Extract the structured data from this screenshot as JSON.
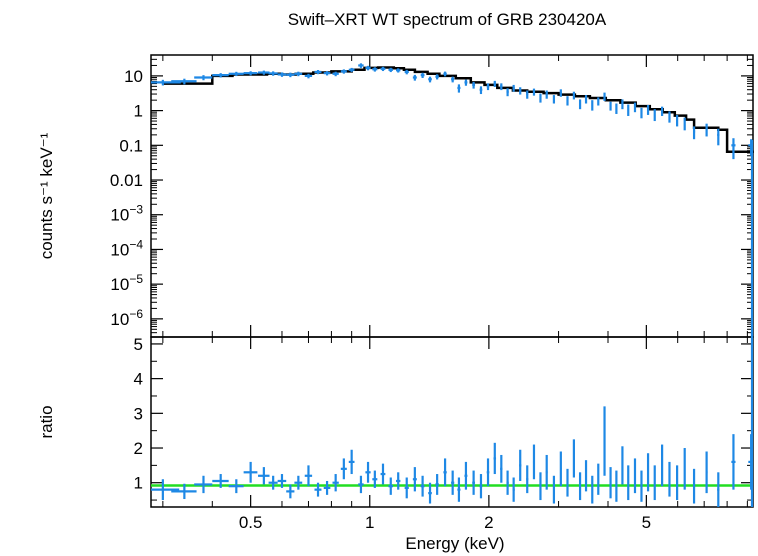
{
  "chart_data": {
    "type": "scatter",
    "title": "Swift–XRT WT spectrum of GRB 230420A",
    "colors": {
      "data": "#1e88e5",
      "model": "#000000",
      "ratio_line": "#22dd22",
      "frame": "#000000"
    },
    "panels": [
      {
        "id": "spectrum",
        "ylabel": "counts s⁻¹ keV⁻¹",
        "yscale": "log",
        "ylim": [
          3e-07,
          40
        ],
        "yticks": [
          {
            "value": 10,
            "label": "10",
            "sup": ""
          },
          {
            "value": 1,
            "label": "1",
            "sup": ""
          },
          {
            "value": 0.1,
            "label": "0.1",
            "sup": ""
          },
          {
            "value": 0.01,
            "label": "0.01",
            "sup": ""
          },
          {
            "value": 0.001,
            "label": "10",
            "sup": "−3"
          },
          {
            "value": 0.0001,
            "label": "10",
            "sup": "−4"
          },
          {
            "value": 1e-05,
            "label": "10",
            "sup": "−5"
          },
          {
            "value": 1e-06,
            "label": "10",
            "sup": "−6"
          }
        ],
        "data": [
          [
            0.3,
            0.033,
            6.5,
            1.2
          ],
          [
            0.34,
            0.025,
            7.0,
            1.3
          ],
          [
            0.38,
            0.02,
            9.0,
            1.5
          ],
          [
            0.42,
            0.02,
            10.5,
            1.5
          ],
          [
            0.46,
            0.02,
            11.5,
            1.6
          ],
          [
            0.5,
            0.02,
            12.0,
            1.6
          ],
          [
            0.54,
            0.018,
            12.5,
            1.7
          ],
          [
            0.57,
            0.015,
            11.8,
            1.7
          ],
          [
            0.6,
            0.015,
            11.0,
            1.6
          ],
          [
            0.63,
            0.015,
            10.8,
            1.6
          ],
          [
            0.66,
            0.015,
            11.5,
            1.7
          ],
          [
            0.7,
            0.015,
            10.0,
            1.5
          ],
          [
            0.74,
            0.015,
            13.0,
            1.8
          ],
          [
            0.78,
            0.015,
            12.0,
            1.7
          ],
          [
            0.82,
            0.015,
            11.5,
            1.7
          ],
          [
            0.86,
            0.015,
            13.5,
            1.9
          ],
          [
            0.9,
            0.015,
            15.0,
            2.0
          ],
          [
            0.95,
            0.015,
            20.0,
            3.0
          ],
          [
            0.99,
            0.015,
            17.0,
            2.5
          ],
          [
            1.03,
            0.015,
            15.5,
            2.2
          ],
          [
            1.08,
            0.015,
            16.0,
            2.2
          ],
          [
            1.13,
            0.015,
            15.0,
            2.1
          ],
          [
            1.18,
            0.015,
            14.5,
            2.0
          ],
          [
            1.24,
            0.015,
            13.0,
            1.9
          ],
          [
            1.3,
            0.015,
            9.0,
            1.7
          ],
          [
            1.36,
            0.015,
            10.5,
            1.8
          ],
          [
            1.42,
            0.015,
            8.0,
            1.5
          ],
          [
            1.48,
            0.015,
            9.5,
            1.6
          ],
          [
            1.55,
            0.015,
            11.5,
            1.8
          ],
          [
            1.62,
            0.015,
            8.0,
            1.5
          ],
          [
            1.68,
            0.015,
            4.5,
            1.2
          ],
          [
            1.75,
            0.015,
            6.5,
            1.3
          ],
          [
            1.83,
            0.015,
            5.5,
            1.2
          ],
          [
            1.91,
            0.015,
            4.0,
            1.0
          ],
          [
            1.99,
            0.015,
            5.0,
            1.1
          ],
          [
            2.07,
            0.015,
            6.0,
            1.2
          ],
          [
            2.15,
            0.015,
            5.0,
            1.1
          ],
          [
            2.23,
            0.015,
            3.5,
            0.9
          ],
          [
            2.31,
            0.015,
            4.5,
            1.0
          ],
          [
            2.4,
            0.015,
            3.8,
            0.9
          ],
          [
            2.5,
            0.015,
            3.0,
            0.8
          ],
          [
            2.6,
            0.015,
            3.5,
            0.8
          ],
          [
            2.7,
            0.015,
            2.4,
            0.7
          ],
          [
            2.8,
            0.015,
            3.0,
            0.8
          ],
          [
            2.92,
            0.015,
            2.2,
            0.6
          ],
          [
            3.04,
            0.015,
            3.3,
            0.8
          ],
          [
            3.16,
            0.015,
            2.0,
            0.6
          ],
          [
            3.28,
            0.015,
            2.8,
            0.7
          ],
          [
            3.4,
            0.015,
            1.6,
            0.5
          ],
          [
            3.52,
            0.015,
            2.2,
            0.6
          ],
          [
            3.65,
            0.015,
            1.5,
            0.5
          ],
          [
            3.78,
            0.015,
            1.9,
            0.5
          ],
          [
            3.92,
            0.015,
            2.6,
            0.7
          ],
          [
            4.06,
            0.015,
            1.4,
            0.4
          ],
          [
            4.2,
            0.015,
            1.2,
            0.4
          ],
          [
            4.35,
            0.015,
            1.6,
            0.5
          ],
          [
            4.5,
            0.015,
            1.1,
            0.4
          ],
          [
            4.68,
            0.015,
            1.3,
            0.4
          ],
          [
            4.86,
            0.015,
            0.9,
            0.3
          ],
          [
            5.05,
            0.015,
            1.1,
            0.35
          ],
          [
            5.25,
            0.015,
            0.8,
            0.3
          ],
          [
            5.48,
            0.015,
            1.0,
            0.3
          ],
          [
            5.72,
            0.015,
            0.7,
            0.25
          ],
          [
            5.98,
            0.015,
            0.55,
            0.2
          ],
          [
            6.25,
            0.015,
            0.45,
            0.18
          ],
          [
            6.6,
            0.04,
            0.25,
            0.1
          ],
          [
            7.1,
            0.04,
            0.3,
            0.12
          ],
          [
            7.6,
            0.05,
            0.2,
            0.1
          ],
          [
            8.3,
            0.1,
            0.1,
            0.06
          ],
          [
            9.2,
            0.15,
            0.1,
            0.05
          ]
        ],
        "model_steps": [
          [
            0.3,
            6.0
          ],
          [
            0.4,
            10.0
          ],
          [
            0.45,
            11.0
          ],
          [
            0.55,
            11.5
          ],
          [
            0.6,
            11.0
          ],
          [
            0.65,
            11.5
          ],
          [
            0.72,
            12.5
          ],
          [
            0.8,
            13.5
          ],
          [
            0.9,
            15.0
          ],
          [
            0.97,
            17.0
          ],
          [
            1.05,
            17.5
          ],
          [
            1.15,
            16.5
          ],
          [
            1.22,
            15.0
          ],
          [
            1.3,
            13.0
          ],
          [
            1.4,
            11.5
          ],
          [
            1.5,
            10.0
          ],
          [
            1.65,
            8.5
          ],
          [
            1.8,
            6.5
          ],
          [
            1.95,
            5.5
          ],
          [
            2.1,
            4.5
          ],
          [
            2.3,
            3.8
          ],
          [
            2.5,
            3.5
          ],
          [
            2.75,
            3.2
          ],
          [
            3.0,
            2.9
          ],
          [
            3.3,
            2.6
          ],
          [
            3.6,
            2.3
          ],
          [
            3.95,
            2.0
          ],
          [
            4.3,
            1.7
          ],
          [
            4.7,
            1.35
          ],
          [
            5.1,
            1.1
          ],
          [
            5.5,
            0.9
          ],
          [
            5.9,
            0.72
          ],
          [
            6.3,
            0.55
          ],
          [
            6.6,
            0.32
          ],
          [
            7.6,
            0.28
          ],
          [
            8.0,
            0.065
          ],
          [
            9.35,
            0.065
          ]
        ]
      },
      {
        "id": "ratio",
        "ylabel": "ratio",
        "yscale": "linear",
        "ylim": [
          0.3,
          5.2
        ],
        "yticks": [
          {
            "value": 1,
            "label": "1",
            "sup": ""
          },
          {
            "value": 2,
            "label": "2",
            "sup": ""
          },
          {
            "value": 3,
            "label": "3",
            "sup": ""
          },
          {
            "value": 4,
            "label": "4",
            "sup": ""
          },
          {
            "value": 5,
            "label": "5",
            "sup": ""
          }
        ],
        "reference_line": 0.92,
        "data": [
          [
            0.3,
            0.03,
            0.8,
            0.3
          ],
          [
            0.34,
            0.025,
            0.75,
            0.22
          ],
          [
            0.38,
            0.02,
            0.95,
            0.25
          ],
          [
            0.42,
            0.02,
            1.05,
            0.2
          ],
          [
            0.46,
            0.02,
            0.9,
            0.2
          ],
          [
            0.5,
            0.02,
            1.3,
            0.3
          ],
          [
            0.54,
            0.018,
            1.2,
            0.25
          ],
          [
            0.57,
            0.015,
            1.0,
            0.2
          ],
          [
            0.6,
            0.015,
            1.05,
            0.2
          ],
          [
            0.63,
            0.015,
            0.75,
            0.2
          ],
          [
            0.66,
            0.015,
            1.0,
            0.2
          ],
          [
            0.7,
            0.015,
            1.2,
            0.3
          ],
          [
            0.74,
            0.015,
            0.8,
            0.2
          ],
          [
            0.78,
            0.015,
            0.85,
            0.2
          ],
          [
            0.82,
            0.015,
            1.0,
            0.25
          ],
          [
            0.86,
            0.015,
            1.4,
            0.3
          ],
          [
            0.9,
            0.015,
            1.6,
            0.35
          ],
          [
            0.95,
            0.015,
            0.95,
            0.25
          ],
          [
            0.99,
            0.015,
            1.3,
            0.3
          ],
          [
            1.03,
            0.015,
            1.1,
            0.25
          ],
          [
            1.08,
            0.015,
            1.25,
            0.3
          ],
          [
            1.13,
            0.015,
            0.9,
            0.25
          ],
          [
            1.18,
            0.015,
            1.05,
            0.25
          ],
          [
            1.24,
            0.015,
            0.85,
            0.3
          ],
          [
            1.3,
            0.015,
            1.1,
            0.35
          ],
          [
            1.36,
            0.015,
            0.9,
            0.3
          ],
          [
            1.42,
            0.015,
            0.7,
            0.3
          ],
          [
            1.48,
            0.015,
            0.95,
            0.3
          ],
          [
            1.55,
            0.015,
            1.3,
            0.4
          ],
          [
            1.62,
            0.015,
            1.0,
            0.35
          ],
          [
            1.68,
            0.015,
            0.8,
            0.35
          ],
          [
            1.75,
            0.015,
            1.2,
            0.4
          ],
          [
            1.83,
            0.015,
            1.0,
            0.35
          ],
          [
            1.91,
            0.015,
            0.9,
            0.35
          ],
          [
            1.99,
            0.015,
            1.3,
            0.4
          ],
          [
            2.07,
            0.015,
            1.7,
            0.45
          ],
          [
            2.15,
            0.015,
            1.4,
            0.4
          ],
          [
            2.23,
            0.015,
            1.0,
            0.35
          ],
          [
            2.31,
            0.015,
            0.8,
            0.35
          ],
          [
            2.4,
            0.015,
            1.5,
            0.45
          ],
          [
            2.5,
            0.015,
            1.1,
            0.4
          ],
          [
            2.6,
            0.015,
            1.6,
            0.5
          ],
          [
            2.7,
            0.015,
            0.9,
            0.4
          ],
          [
            2.8,
            0.015,
            1.3,
            0.5
          ],
          [
            2.92,
            0.015,
            0.8,
            0.4
          ],
          [
            3.04,
            0.015,
            1.4,
            0.5
          ],
          [
            3.16,
            0.015,
            1.0,
            0.4
          ],
          [
            3.28,
            0.015,
            1.7,
            0.55
          ],
          [
            3.4,
            0.015,
            0.9,
            0.4
          ],
          [
            3.52,
            0.015,
            1.2,
            0.45
          ],
          [
            3.65,
            0.015,
            0.8,
            0.4
          ],
          [
            3.78,
            0.015,
            1.1,
            0.45
          ],
          [
            3.92,
            0.015,
            2.2,
            1.0
          ],
          [
            4.06,
            0.015,
            1.0,
            0.45
          ],
          [
            4.2,
            0.015,
            0.9,
            0.45
          ],
          [
            4.35,
            0.015,
            1.5,
            0.55
          ],
          [
            4.5,
            0.015,
            1.0,
            0.5
          ],
          [
            4.68,
            0.015,
            1.2,
            0.5
          ],
          [
            4.86,
            0.015,
            0.9,
            0.45
          ],
          [
            5.05,
            0.015,
            1.3,
            0.55
          ],
          [
            5.25,
            0.015,
            1.0,
            0.5
          ],
          [
            5.48,
            0.015,
            1.5,
            0.6
          ],
          [
            5.72,
            0.015,
            1.1,
            0.5
          ],
          [
            5.98,
            0.015,
            1.0,
            0.5
          ],
          [
            6.25,
            0.015,
            1.4,
            0.6
          ],
          [
            6.6,
            0.04,
            0.9,
            0.5
          ],
          [
            7.1,
            0.04,
            1.3,
            0.6
          ],
          [
            7.6,
            0.05,
            0.8,
            0.5
          ],
          [
            8.3,
            0.1,
            1.6,
            0.8
          ],
          [
            9.2,
            0.15,
            1.6,
            0.8
          ]
        ]
      }
    ],
    "x": {
      "label": "Energy (keV)",
      "scale": "log",
      "lim": [
        0.28,
        9.3
      ],
      "ticks": [
        {
          "value": 0.5,
          "label": "0.5"
        },
        {
          "value": 1,
          "label": "1"
        },
        {
          "value": 2,
          "label": "2"
        },
        {
          "value": 5,
          "label": "5"
        }
      ],
      "minor_ticks": [
        0.3,
        0.4,
        0.6,
        0.7,
        0.8,
        0.9,
        3,
        4,
        6,
        7,
        8,
        9
      ]
    },
    "grid": false,
    "legend": "none"
  }
}
